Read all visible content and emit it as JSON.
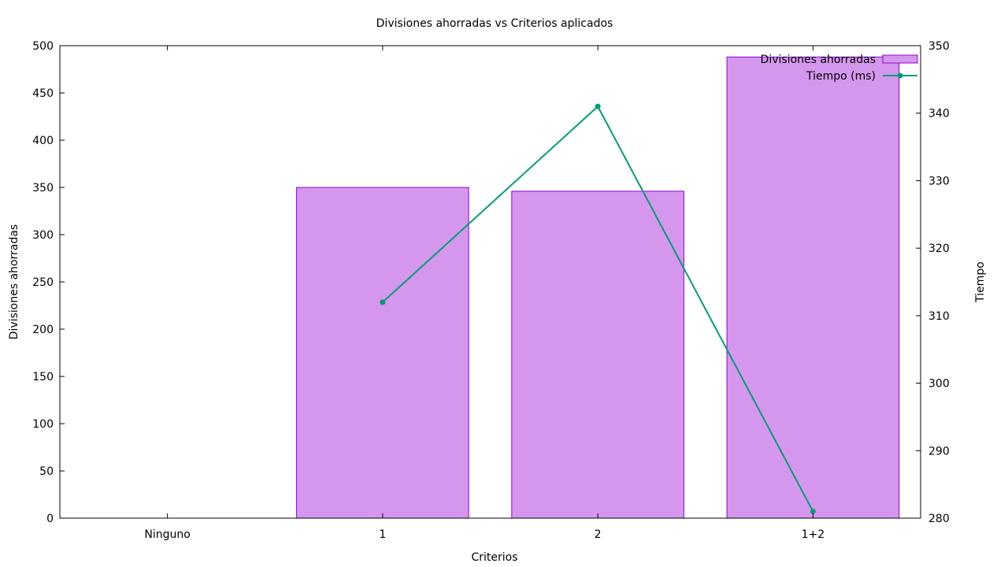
{
  "chart_data": {
    "type": "bar",
    "title": "Divisiones ahorradas vs Criterios aplicados",
    "xlabel": "Criterios",
    "ylabel": "Divisiones ahorradas",
    "y2label": "Tiempo",
    "categories": [
      "Ninguno",
      "1",
      "2",
      "1+2"
    ],
    "ylim": [
      0,
      500
    ],
    "y2lim": [
      280,
      350
    ],
    "yticks": [
      0,
      50,
      100,
      150,
      200,
      250,
      300,
      350,
      400,
      450,
      500
    ],
    "y2ticks": [
      280,
      290,
      300,
      310,
      320,
      330,
      340,
      350
    ],
    "grid": false,
    "legend_position": "top-right",
    "series": [
      {
        "name": "Divisiones ahorradas",
        "type": "bar",
        "axis": "y",
        "color": "#d597ed",
        "edge_color": "#9400d3",
        "values": [
          0,
          350,
          346,
          488
        ]
      },
      {
        "name": "Tiempo (ms)",
        "type": "line",
        "axis": "y2",
        "color": "#009e73",
        "values": [
          null,
          312,
          341,
          281
        ]
      }
    ]
  }
}
